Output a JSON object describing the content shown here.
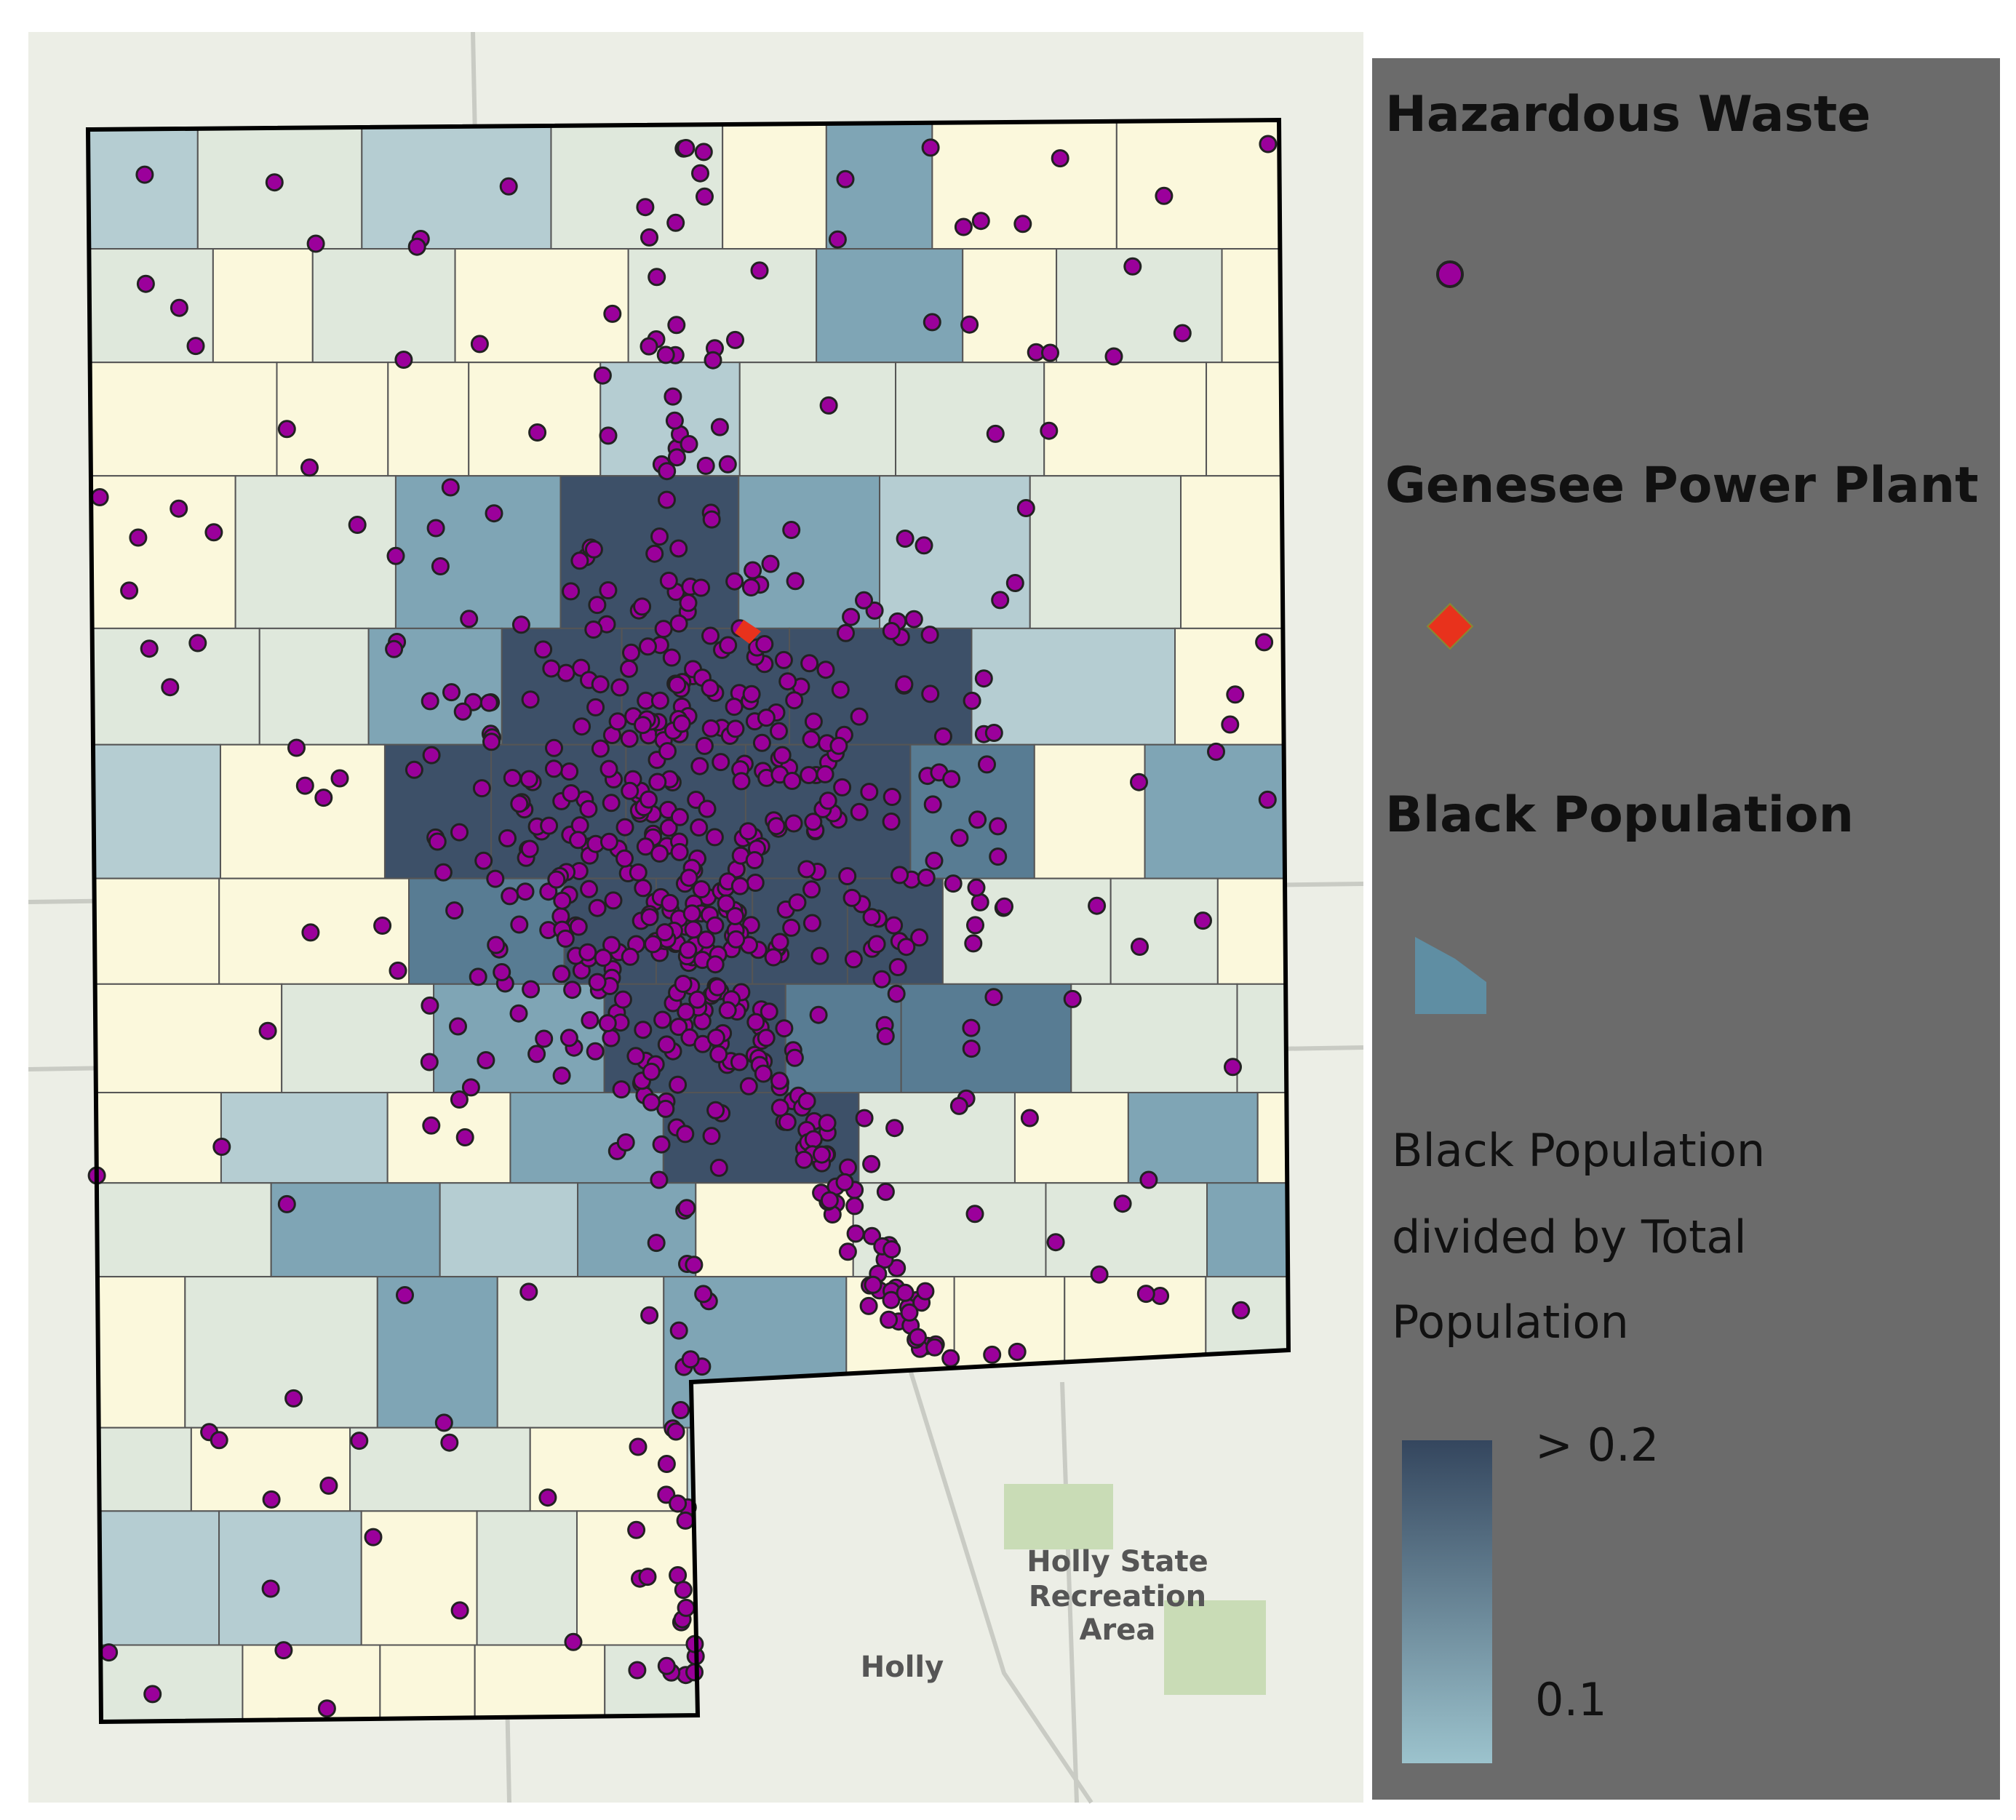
{
  "legend": {
    "items": [
      {
        "label": "Hazardous Waste"
      },
      {
        "label": "Genesee Power Plant"
      },
      {
        "label": "Black Population"
      }
    ],
    "scale": {
      "title_lines": [
        "Black Population",
        "divided by Total",
        "Population"
      ],
      "labels": [
        "> 0.2",
        "0.1"
      ]
    }
  },
  "map_labels": {
    "town": "Holly",
    "park_lines": [
      "Holly State",
      "Recreation",
      "Area"
    ]
  }
}
